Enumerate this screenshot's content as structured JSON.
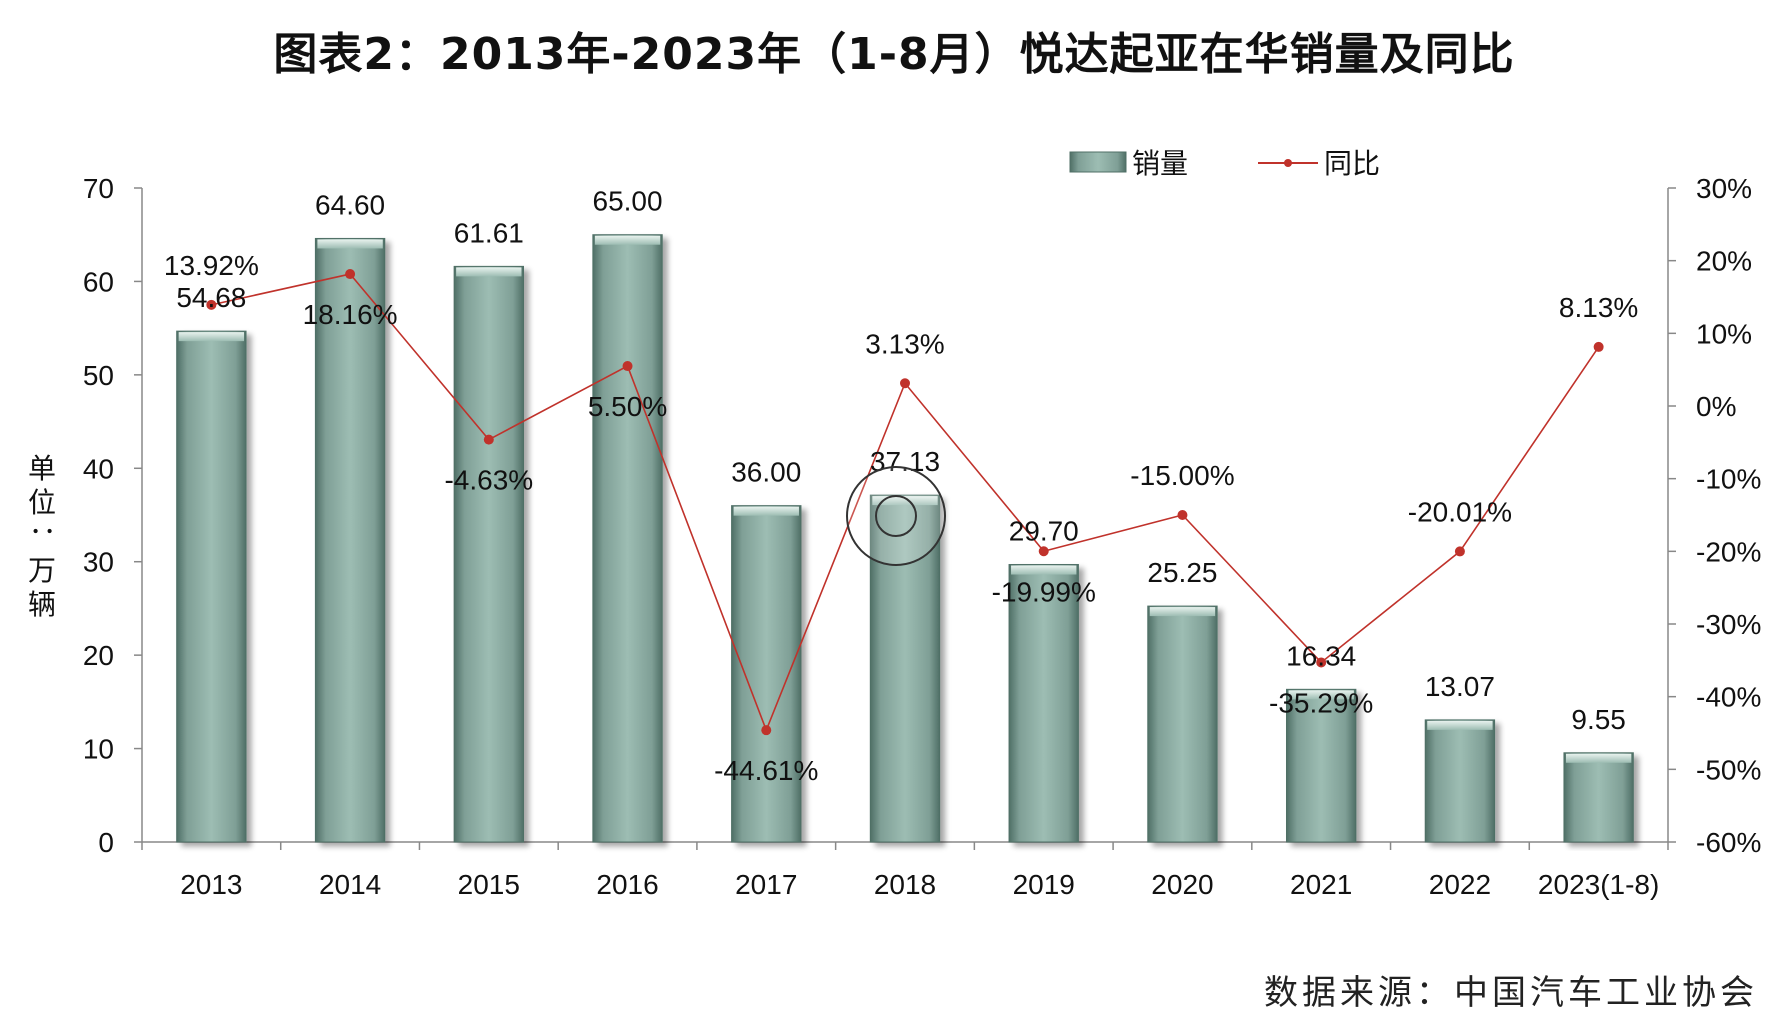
{
  "title": "图表2：2013年-2023年（1-8月）悦达起亚在华销量及同比",
  "source": "数据来源：中国汽车工业协会",
  "chart_data": {
    "type": "bar",
    "categories": [
      "2013",
      "2014",
      "2015",
      "2016",
      "2017",
      "2018",
      "2019",
      "2020",
      "2021",
      "2022",
      "2023(1-8)"
    ],
    "series": [
      {
        "name": "销量",
        "type": "bar",
        "axis": "left",
        "values": [
          54.68,
          64.6,
          61.61,
          65.0,
          36.0,
          37.13,
          29.7,
          25.25,
          16.34,
          13.07,
          9.55
        ],
        "labels": [
          "54.68",
          "64.60",
          "61.61",
          "65.00",
          "36.00",
          "37.13",
          "29.70",
          "25.25",
          "16.34",
          "13.07",
          "9.55"
        ]
      },
      {
        "name": "同比",
        "type": "line",
        "axis": "right",
        "values": [
          13.92,
          18.16,
          -4.63,
          5.5,
          -44.61,
          3.13,
          -19.99,
          -15.0,
          -35.29,
          -20.01,
          8.13
        ],
        "labels": [
          "13.92%",
          "18.16%",
          "-4.63%",
          "5.50%",
          "-44.61%",
          "3.13%",
          "-19.99%",
          "-15.00%",
          "-35.29%",
          "-20.01%",
          "8.13%"
        ]
      }
    ],
    "ylabel": "单位：万辆",
    "ylim": [
      0,
      70
    ],
    "yticks": [
      "0",
      "10",
      "20",
      "30",
      "40",
      "50",
      "60",
      "70"
    ],
    "y2lim": [
      -60,
      30
    ],
    "y2ticks": [
      "-60%",
      "-50%",
      "-40%",
      "-30%",
      "-20%",
      "-10%",
      "0%",
      "10%",
      "20%",
      "30%"
    ],
    "legend_position": "top-right",
    "grid": false,
    "colors": {
      "bar": "#8fb0a6",
      "bar_dark": "#4f6f66",
      "line": "#c0322b",
      "axis": "#888888"
    }
  }
}
